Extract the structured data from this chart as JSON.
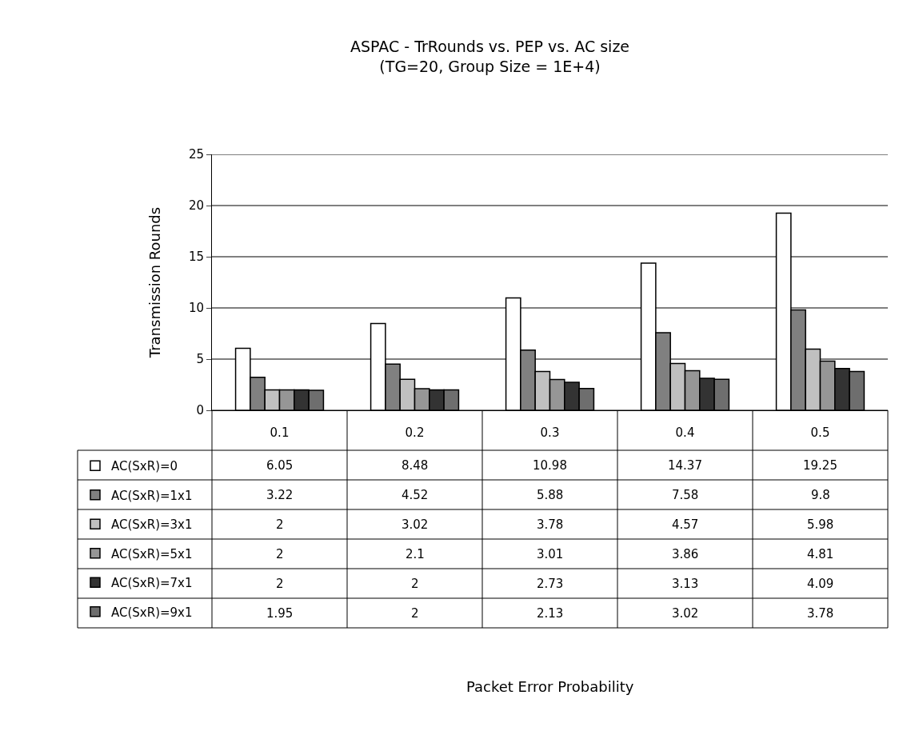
{
  "chart_data": {
    "type": "bar",
    "title": "ASPAC - TrRounds vs. PEP vs. AC size",
    "subtitle": "(TG=20, Group Size = 1E+4)",
    "annotations": [
      "Packet Error Probability"
    ],
    "ylabel": "Transmission Rounds",
    "categories": [
      "0.1",
      "0.2",
      "0.3",
      "0.4",
      "0.5"
    ],
    "series": [
      {
        "name": "AC(SxR)=0",
        "color": "#ffffff",
        "values": [
          6.05,
          8.48,
          10.98,
          14.37,
          19.25
        ]
      },
      {
        "name": "AC(SxR)=1x1",
        "color": "#808080",
        "values": [
          3.22,
          4.52,
          5.88,
          7.58,
          9.8
        ]
      },
      {
        "name": "AC(SxR)=3x1",
        "color": "#c0c0c0",
        "values": [
          2,
          3.02,
          3.78,
          4.57,
          5.98
        ]
      },
      {
        "name": "AC(SxR)=5x1",
        "color": "#969696",
        "values": [
          2,
          2.1,
          3.01,
          3.86,
          4.81
        ]
      },
      {
        "name": "AC(SxR)=7x1",
        "color": "#333333",
        "values": [
          2,
          2,
          2.73,
          3.13,
          4.09
        ]
      },
      {
        "name": "AC(SxR)=9x1",
        "color": "#6e6e6e",
        "values": [
          1.95,
          2,
          2.13,
          3.02,
          3.78
        ]
      }
    ],
    "ylim": [
      0,
      25
    ],
    "yticks": [
      0,
      5,
      10,
      15,
      20,
      25
    ],
    "grid": "y",
    "legend": "left",
    "data_labels": true
  }
}
